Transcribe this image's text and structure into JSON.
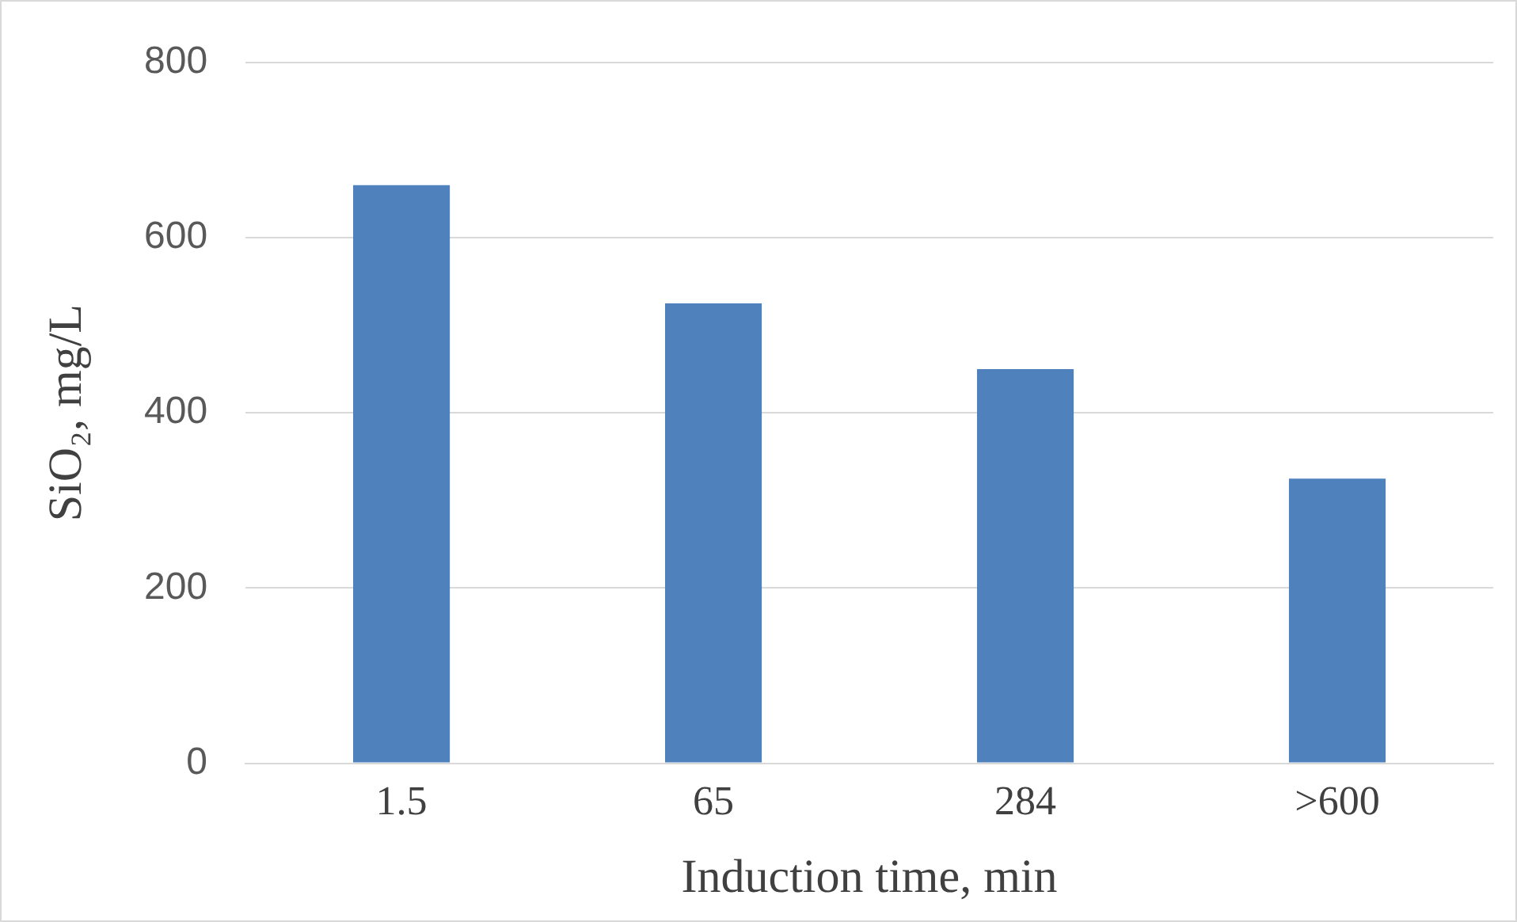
{
  "chart_data": {
    "type": "bar",
    "xlabel": "Induction time, min",
    "ylabel": "SiO₂, mg/L",
    "categories": [
      "1.5",
      "65",
      "284",
      ">600"
    ],
    "values": [
      660,
      525,
      450,
      325
    ],
    "color": "#4f81bd",
    "ylim": [
      0,
      800
    ],
    "yticks": [
      0,
      200,
      400,
      600,
      800
    ],
    "grid": "y",
    "legend": false
  }
}
